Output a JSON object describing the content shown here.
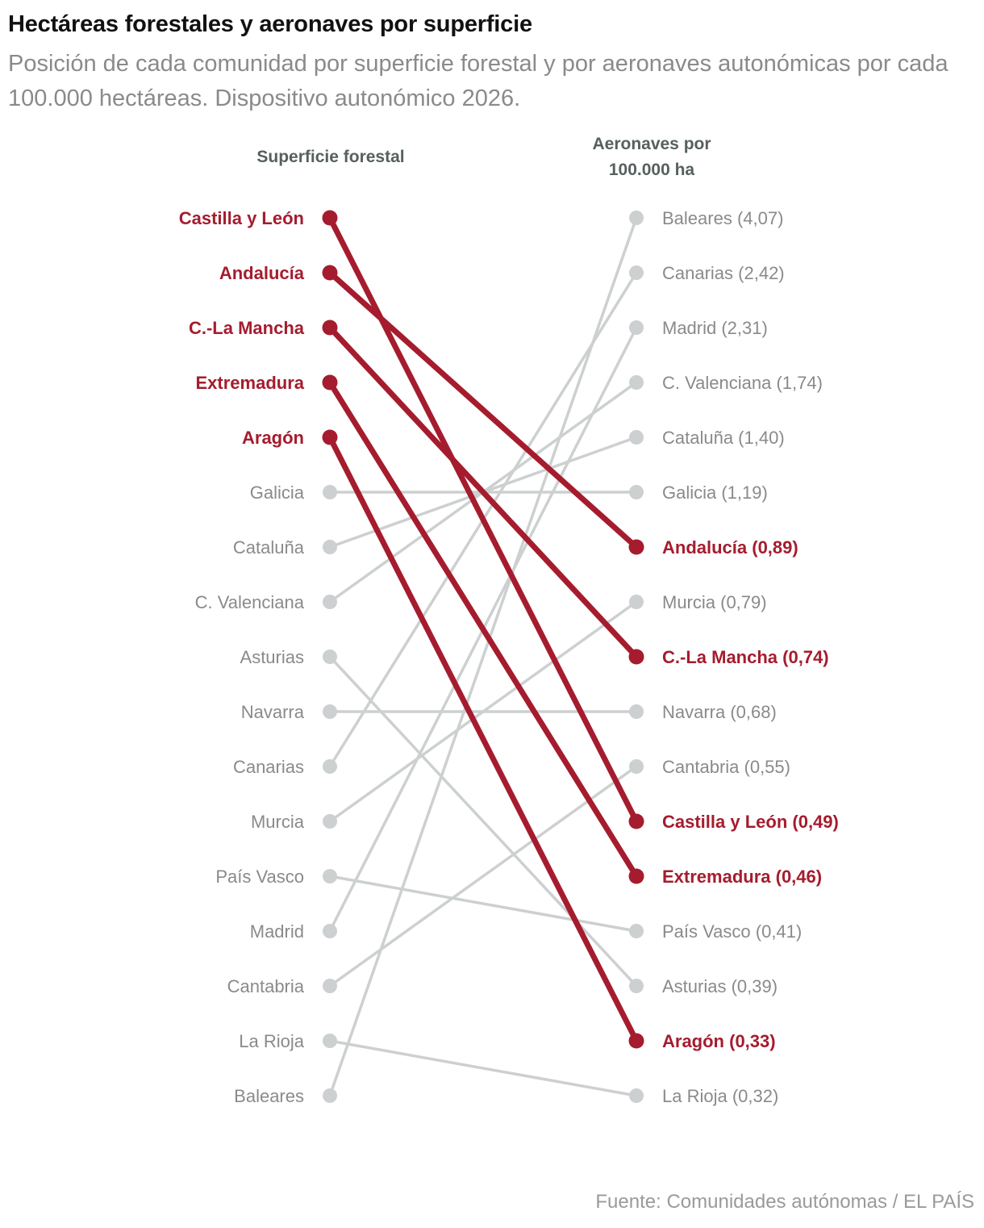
{
  "title": "Hectáreas forestales y aeronaves por superficie",
  "subtitle": "Posición de cada comunidad por superficie forestal y por aeronaves autonómicas por cada 100.000 hectáreas. Dispositivo autonómico 2026.",
  "source": "Fuente: Comunidades autónomas / EL PAÍS",
  "colors": {
    "highlight": "#a51c2e",
    "muted": "#cdd0d0",
    "muted_text": "#8a8a8a",
    "header": "#56605f"
  },
  "chart_data": {
    "type": "slope",
    "left_header": "Superficie forestal",
    "right_header_lines": [
      "Aeronaves por",
      "100.000 ha"
    ],
    "left_order": [
      "Castilla y León",
      "Andalucía",
      "C.-La Mancha",
      "Extremadura",
      "Aragón",
      "Galicia",
      "Cataluña",
      "C. Valenciana",
      "Asturias",
      "Navarra",
      "Canarias",
      "Murcia",
      "País Vasco",
      "Madrid",
      "Cantabria",
      "La Rioja",
      "Baleares"
    ],
    "right_order": [
      {
        "name": "Baleares",
        "value": "4,07"
      },
      {
        "name": "Canarias",
        "value": "2,42"
      },
      {
        "name": "Madrid",
        "value": "2,31"
      },
      {
        "name": "C. Valenciana",
        "value": "1,74"
      },
      {
        "name": "Cataluña",
        "value": "1,40"
      },
      {
        "name": "Galicia",
        "value": "1,19"
      },
      {
        "name": "Andalucía",
        "value": "0,89"
      },
      {
        "name": "Murcia",
        "value": "0,79"
      },
      {
        "name": "C.-La Mancha",
        "value": "0,74"
      },
      {
        "name": "Navarra",
        "value": "0,68"
      },
      {
        "name": "Cantabria",
        "value": "0,55"
      },
      {
        "name": "Castilla y León",
        "value": "0,49"
      },
      {
        "name": "Extremadura",
        "value": "0,46"
      },
      {
        "name": "País Vasco",
        "value": "0,41"
      },
      {
        "name": "Asturias",
        "value": "0,39"
      },
      {
        "name": "Aragón",
        "value": "0,33"
      },
      {
        "name": "La Rioja",
        "value": "0,32"
      }
    ],
    "highlighted": [
      "Castilla y León",
      "Andalucía",
      "C.-La Mancha",
      "Extremadura",
      "Aragón"
    ]
  }
}
